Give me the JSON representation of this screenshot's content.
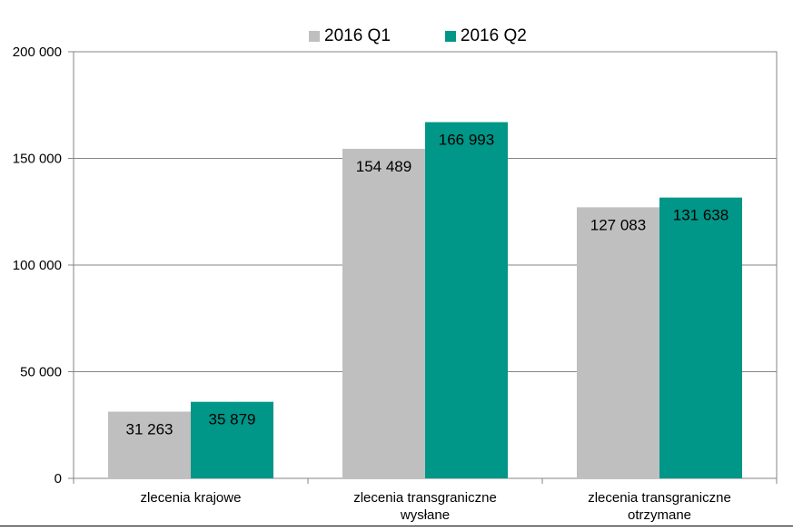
{
  "chart_data": {
    "type": "bar",
    "categories": [
      [
        "zlecenia krajowe"
      ],
      [
        "zlecenia transgraniczne",
        "wysłane"
      ],
      [
        "zlecenia transgraniczne",
        "otrzymane"
      ]
    ],
    "series": [
      {
        "name": "2016 Q1",
        "color": "#bfbfbf",
        "values": [
          31263,
          154489,
          127083
        ],
        "labels": [
          "31 263",
          "154 489",
          "127 083"
        ]
      },
      {
        "name": "2016 Q2",
        "color": "#009688",
        "values": [
          35879,
          166993,
          131638
        ],
        "labels": [
          "35 879",
          "166 993",
          "131 638"
        ]
      }
    ],
    "ylim": [
      0,
      200000
    ],
    "yticks": [
      0,
      50000,
      100000,
      150000,
      200000
    ],
    "ytick_labels": [
      "0",
      "50 000",
      "100 000",
      "150 000",
      "200 000"
    ],
    "grid": true,
    "legend_position": "top-center"
  }
}
